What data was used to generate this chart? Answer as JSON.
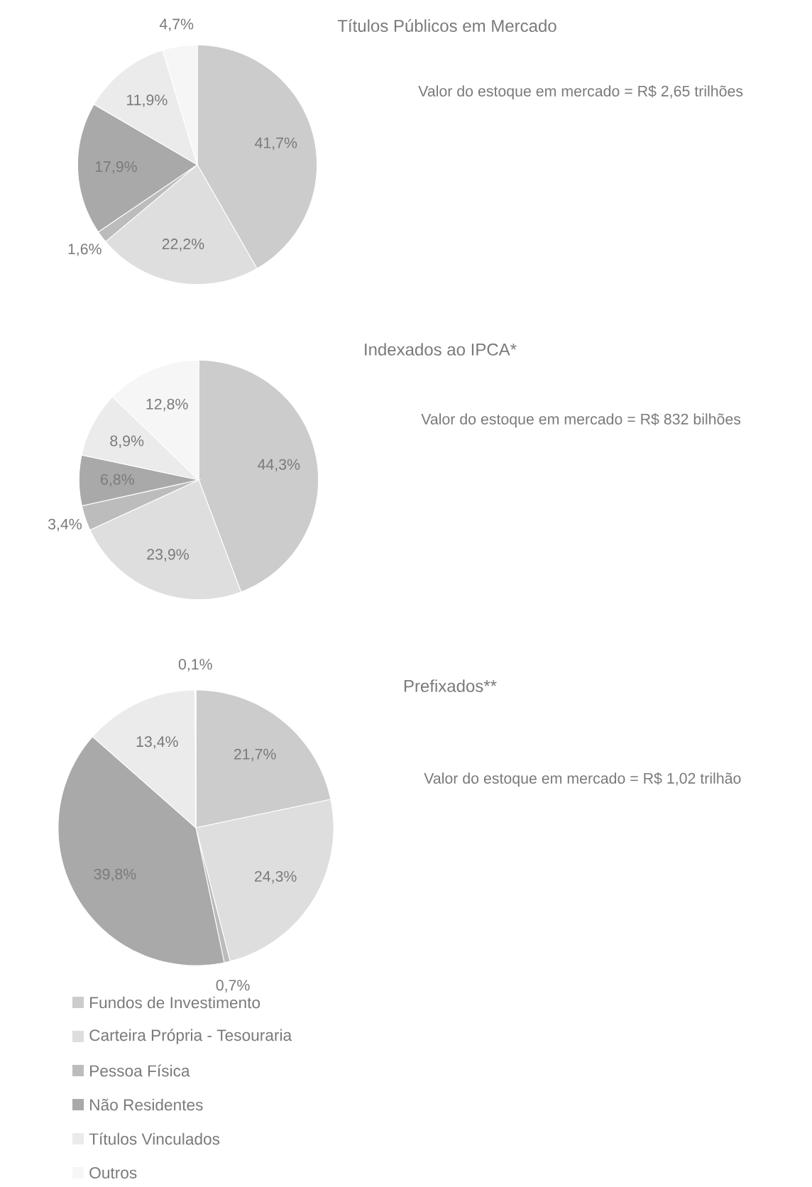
{
  "chart_data": [
    {
      "type": "pie",
      "title": "Títulos Públicos em Mercado",
      "annotations": [
        "Valor do estoque em mercado = R$ 2,65 trilhões"
      ],
      "categories": [
        null,
        null,
        null,
        null,
        null,
        null
      ],
      "values": [
        41.7,
        22.2,
        1.6,
        17.9,
        11.9,
        4.7
      ],
      "value_labels": [
        "41,7%",
        "22,2%",
        "1,6%",
        "17,9%",
        "11,9%",
        "4,7%"
      ],
      "colors": [
        "#cccccc",
        "#dedede",
        "#bcbcbc",
        "#a9a9a9",
        "#ebebeb",
        "#f6f6f6"
      ],
      "legend": false
    },
    {
      "type": "pie",
      "title": "Indexados ao IPCA*",
      "annotations": [
        "Valor do estoque em mercado = R$ 832 bilhões"
      ],
      "categories": [
        null,
        null,
        null,
        null,
        null,
        null
      ],
      "values": [
        44.3,
        23.9,
        3.4,
        6.8,
        8.9,
        12.8
      ],
      "value_labels": [
        "44,3%",
        "23,9%",
        "3,4%",
        "6,8%",
        "8,9%",
        "12,8%"
      ],
      "colors": [
        "#cccccc",
        "#dedede",
        "#bcbcbc",
        "#a9a9a9",
        "#ebebeb",
        "#f6f6f6"
      ],
      "legend": false
    },
    {
      "type": "pie",
      "title": "Prefixados**",
      "annotations": [
        "Valor do estoque em mercado = R$ 1,02 trilhão"
      ],
      "categories": [
        "Fundos de Investimento",
        "Carteira Própria - Tesouraria",
        "Pessoa Física",
        "Não Residentes",
        "Títulos Vinculados",
        "Outros"
      ],
      "values": [
        21.7,
        24.3,
        0.7,
        39.8,
        13.4,
        0.1
      ],
      "value_labels": [
        "21,7%",
        "24,3%",
        "0,7%",
        "39,8%",
        "13,4%",
        "0,1%"
      ],
      "colors": [
        "#cccccc",
        "#dedede",
        "#bcbcbc",
        "#a9a9a9",
        "#ebebeb",
        "#f6f6f6"
      ],
      "legend": "bottom"
    }
  ]
}
